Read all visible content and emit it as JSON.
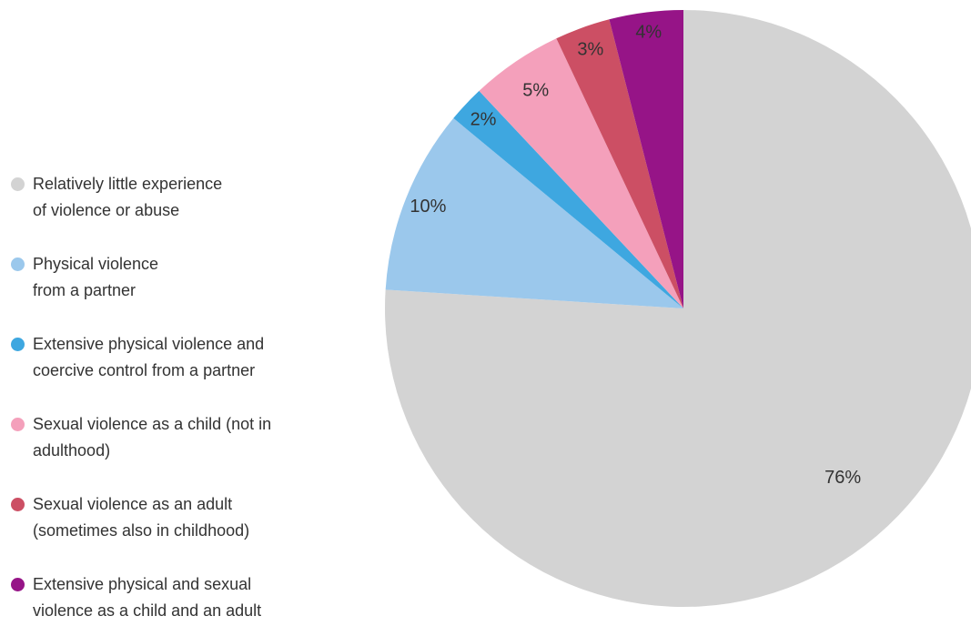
{
  "chart_data": {
    "type": "pie",
    "title": "",
    "start": "12 o'clock",
    "direction": "clockwise",
    "categories": [
      "Relatively little experience of violence or abuse",
      "Physical violence from a partner",
      "Extensive physical violence and coercive control from a partner",
      "Sexual violence as a child (not in adulthood)",
      "Sexual violence as an adult (sometimes also in childhood)",
      "Extensive physical and sexual violence as a child and an adult"
    ],
    "values": [
      76,
      10,
      2,
      5,
      3,
      4
    ],
    "value_labels": [
      "76%",
      "10%",
      "2%",
      "5%",
      "3%",
      "4%"
    ],
    "colors": [
      "#d3d3d3",
      "#9bc8ec",
      "#3ea7e0",
      "#f4a0bb",
      "#cc4f64",
      "#961487"
    ],
    "legend_position": "left"
  },
  "legend": {
    "items": [
      {
        "label": "Relatively little experience\nof violence or abuse",
        "color": "#d3d3d3"
      },
      {
        "label": "Physical violence\nfrom a partner",
        "color": "#9bc8ec"
      },
      {
        "label": "Extensive physical violence and\ncoercive control from a partner",
        "color": "#3ea7e0"
      },
      {
        "label": "Sexual violence as a child (not in\nadulthood)",
        "color": "#f4a0bb"
      },
      {
        "label": "Sexual violence as an adult\n(sometimes also in childhood)",
        "color": "#cc4f64"
      },
      {
        "label": "Extensive physical and sexual\nviolence as a child and an adult",
        "color": "#961487"
      }
    ]
  }
}
